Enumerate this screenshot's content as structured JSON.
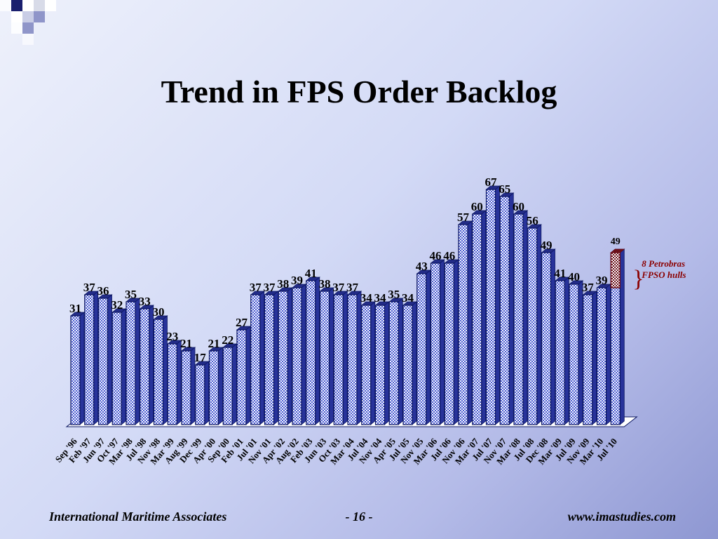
{
  "slide": {
    "title": "Trend in FPS Order Backlog",
    "footer_left": "International Maritime Associates",
    "footer_center": "- 16 -",
    "footer_right": "www.imastudies.com"
  },
  "chart_data": {
    "type": "bar",
    "title": "Trend in FPS Order Backlog",
    "xlabel": "",
    "ylabel": "",
    "ylim": [
      0,
      75
    ],
    "grid": false,
    "style": "3d-bar",
    "bar_fill_color": "#5b6bd6",
    "bar_outline_color": "#0a1560",
    "categories": [
      "Sep '96",
      "Feb '97",
      "Jun '97",
      "Oct '97",
      "Mar '98",
      "Jul '98",
      "Nov '98",
      "Mar '99",
      "Aug '99",
      "Dec '99",
      "Apr '00",
      "Sep '00",
      "Feb '01",
      "Jul '01",
      "Nov '01",
      "Apr '02",
      "Aug '02",
      "Feb '03",
      "Jun '03",
      "Oct '03",
      "Mar '04",
      "Jul '04",
      "Nov '04",
      "Apr '05",
      "Jul '05",
      "Nov '05",
      "Mar '06",
      "Jul '06",
      "Nov '06",
      "Mar '07",
      "Jul '07",
      "Nov '07",
      "Mar '08",
      "Jul '08",
      "Dec '08",
      "Mar '09",
      "Jul '09",
      "Nov '09",
      "Mar '10",
      "Jul '10"
    ],
    "values": [
      31,
      37,
      36,
      32,
      35,
      33,
      30,
      23,
      21,
      17,
      21,
      22,
      27,
      37,
      37,
      38,
      39,
      41,
      38,
      37,
      37,
      34,
      34,
      35,
      34,
      43,
      46,
      46,
      57,
      60,
      67,
      65,
      60,
      56,
      49,
      41,
      40,
      37,
      39,
      49
    ],
    "highlight": {
      "category": "Jul '10",
      "from": 39,
      "to": 49,
      "fill_color": "#6b0f1a",
      "label_lines": [
        "8 Petrobras",
        "FPSO hulls"
      ],
      "label_color": "#8b0000"
    }
  }
}
